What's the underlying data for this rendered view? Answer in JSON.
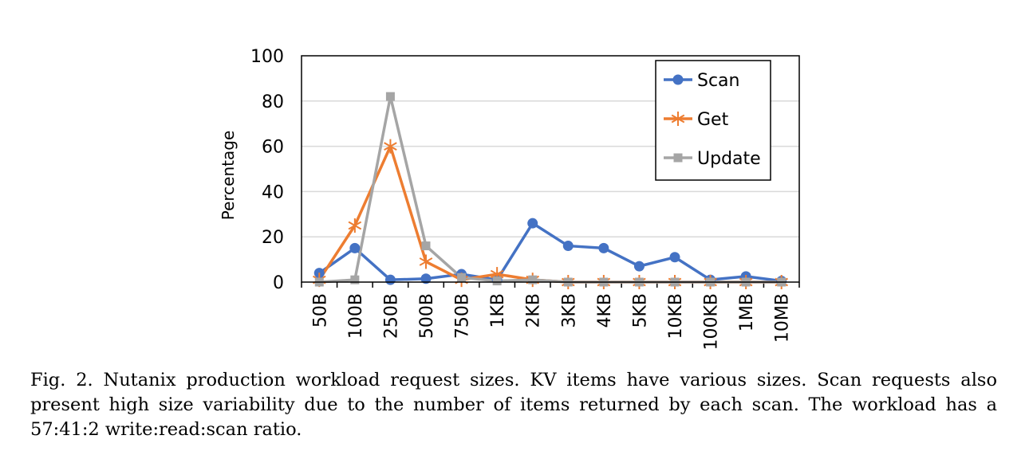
{
  "chart_data": {
    "type": "line",
    "categories": [
      "50B",
      "100B",
      "250B",
      "500B",
      "750B",
      "1KB",
      "2KB",
      "3KB",
      "4KB",
      "5KB",
      "10KB",
      "100KB",
      "1MB",
      "10MB"
    ],
    "series": [
      {
        "name": "Scan",
        "values": [
          4,
          15,
          1,
          1.5,
          3.5,
          1,
          26,
          16,
          15,
          7,
          11,
          1,
          2.5,
          0.5
        ],
        "color": "#4472C4",
        "marker": "circle"
      },
      {
        "name": "Get",
        "values": [
          1,
          25,
          60,
          9,
          1,
          3.5,
          1,
          0,
          0,
          0,
          0,
          0,
          0,
          0
        ],
        "color": "#ED7D31",
        "marker": "asterisk"
      },
      {
        "name": "Update",
        "values": [
          0,
          1,
          82,
          16,
          2,
          0.5,
          1,
          0,
          0,
          0,
          0,
          0,
          0,
          0
        ],
        "color": "#A5A5A5",
        "marker": "square"
      }
    ],
    "yticks": [
      "0",
      "20",
      "40",
      "60",
      "80",
      "100"
    ],
    "ylim": [
      0,
      100
    ],
    "ylabel": "Percentage",
    "xlabel": "",
    "grid": "horizontal",
    "legend_placement": "top-right"
  },
  "caption": "Fig. 2.  Nutanix production workload request sizes. KV items have various sizes. Scan requests also present high size variability due to the number of items returned by each scan. The workload has a 57:41:2 write:read:scan ratio."
}
